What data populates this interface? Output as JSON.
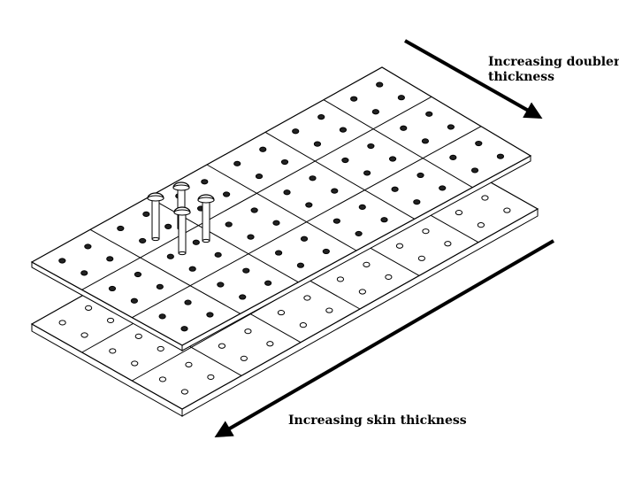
{
  "labels": {
    "doubler_line1": "Increasing doubler",
    "doubler_line2": "thickness",
    "skin": "Increasing skin thickness"
  },
  "colors": {
    "ink": "#000000",
    "panel_fill": "#ffffff",
    "background": "#ffffff"
  },
  "grid": {
    "bottom_plate": {
      "columns": 3,
      "rows": 6,
      "holes_per_cell": 4
    },
    "top_plate": {
      "columns": 3,
      "rows": 6,
      "holes_per_cell": 4
    }
  },
  "fasteners": {
    "count": 4
  },
  "arrows": [
    {
      "name": "doubler-arrow",
      "direction": "down-right"
    },
    {
      "name": "skin-arrow",
      "direction": "down-left"
    }
  ]
}
